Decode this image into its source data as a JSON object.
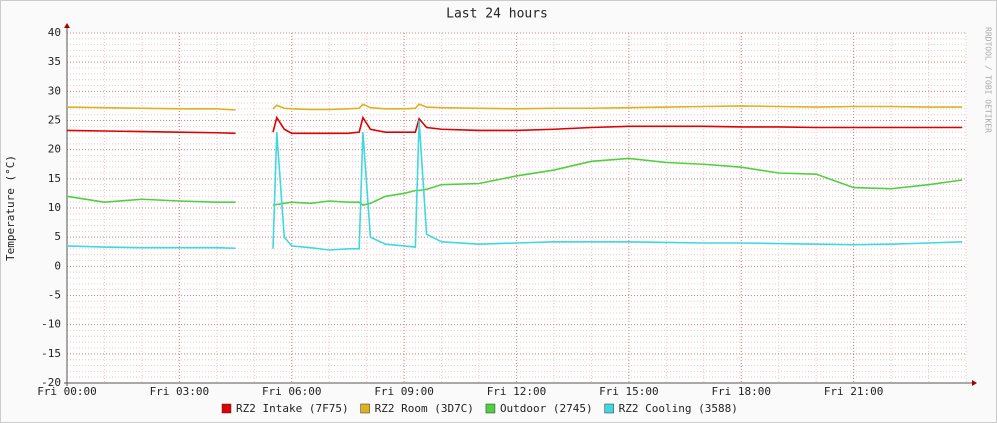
{
  "chart_data": {
    "type": "line",
    "title": "Last 24 hours",
    "ylabel": "Temperature (°C)",
    "watermark": "RRDTOOL / TOBI OETIKER",
    "x": [
      0,
      1,
      2,
      3,
      4,
      4.5,
      5,
      5.5,
      5.6,
      5.8,
      6,
      6.5,
      7,
      7.5,
      7.8,
      7.9,
      8.1,
      8.5,
      9,
      9.3,
      9.4,
      9.6,
      10,
      11,
      12,
      13,
      14,
      15,
      16,
      17,
      18,
      19,
      20,
      21,
      22,
      23,
      23.9
    ],
    "series": [
      {
        "name": "RZ2 Intake (7F75)",
        "color": "#e00000",
        "values": [
          23.3,
          23.2,
          23.1,
          23,
          22.9,
          22.8,
          null,
          23,
          25.5,
          23.5,
          22.8,
          22.8,
          22.8,
          22.8,
          23,
          25.5,
          23.5,
          23,
          23,
          23,
          25.3,
          23.8,
          23.5,
          23.3,
          23.3,
          23.5,
          23.8,
          24,
          24,
          24,
          23.9,
          23.9,
          23.8,
          23.8,
          23.8,
          23.8,
          23.8
        ]
      },
      {
        "name": "RZ2 Room (3D7C)",
        "color": "#e0b020",
        "values": [
          27.3,
          27.2,
          27.1,
          27,
          27,
          26.8,
          null,
          27,
          27.6,
          27.1,
          27,
          26.9,
          26.9,
          27,
          27.1,
          27.8,
          27.2,
          27,
          27,
          27.1,
          27.8,
          27.3,
          27.2,
          27.1,
          27,
          27.1,
          27.1,
          27.2,
          27.3,
          27.4,
          27.5,
          27.4,
          27.3,
          27.4,
          27.4,
          27.3,
          27.3
        ]
      },
      {
        "name": "Outdoor (2745)",
        "color": "#50d040",
        "values": [
          12,
          11,
          11.5,
          11.2,
          11,
          11,
          null,
          10.5,
          10.6,
          10.8,
          11,
          10.8,
          11.2,
          11,
          11,
          10.5,
          10.8,
          12,
          12.5,
          13,
          13,
          13.2,
          14,
          14.2,
          15.5,
          16.5,
          18,
          18.5,
          17.8,
          17.5,
          17,
          16,
          15.8,
          13.5,
          13.3,
          14,
          14.8
        ]
      },
      {
        "name": "RZ2 Cooling (3588)",
        "color": "#40d8e0",
        "values": [
          3.5,
          3.3,
          3.2,
          3.2,
          3.2,
          3.1,
          null,
          3,
          23,
          5,
          3.5,
          3.2,
          2.8,
          3,
          3,
          23,
          5,
          3.8,
          3.5,
          3.3,
          25,
          5.5,
          4.2,
          3.8,
          4,
          4.2,
          4.2,
          4.2,
          4.1,
          4,
          4,
          3.9,
          3.8,
          3.7,
          3.8,
          4,
          4.2
        ]
      }
    ],
    "xlim": [
      0,
      24
    ],
    "xticks": [
      {
        "value": 0,
        "label": "Fri 00:00"
      },
      {
        "value": 3,
        "label": "Fri 03:00"
      },
      {
        "value": 6,
        "label": "Fri 06:00"
      },
      {
        "value": 9,
        "label": "Fri 09:00"
      },
      {
        "value": 12,
        "label": "Fri 12:00"
      },
      {
        "value": 15,
        "label": "Fri 15:00"
      },
      {
        "value": 18,
        "label": "Fri 18:00"
      },
      {
        "value": 21,
        "label": "Fri 21:00"
      }
    ],
    "ylim": [
      -20,
      40
    ],
    "yticks": [
      -20,
      -15,
      -10,
      -5,
      0,
      5,
      10,
      15,
      20,
      25,
      30,
      35,
      40
    ],
    "grid": true
  }
}
